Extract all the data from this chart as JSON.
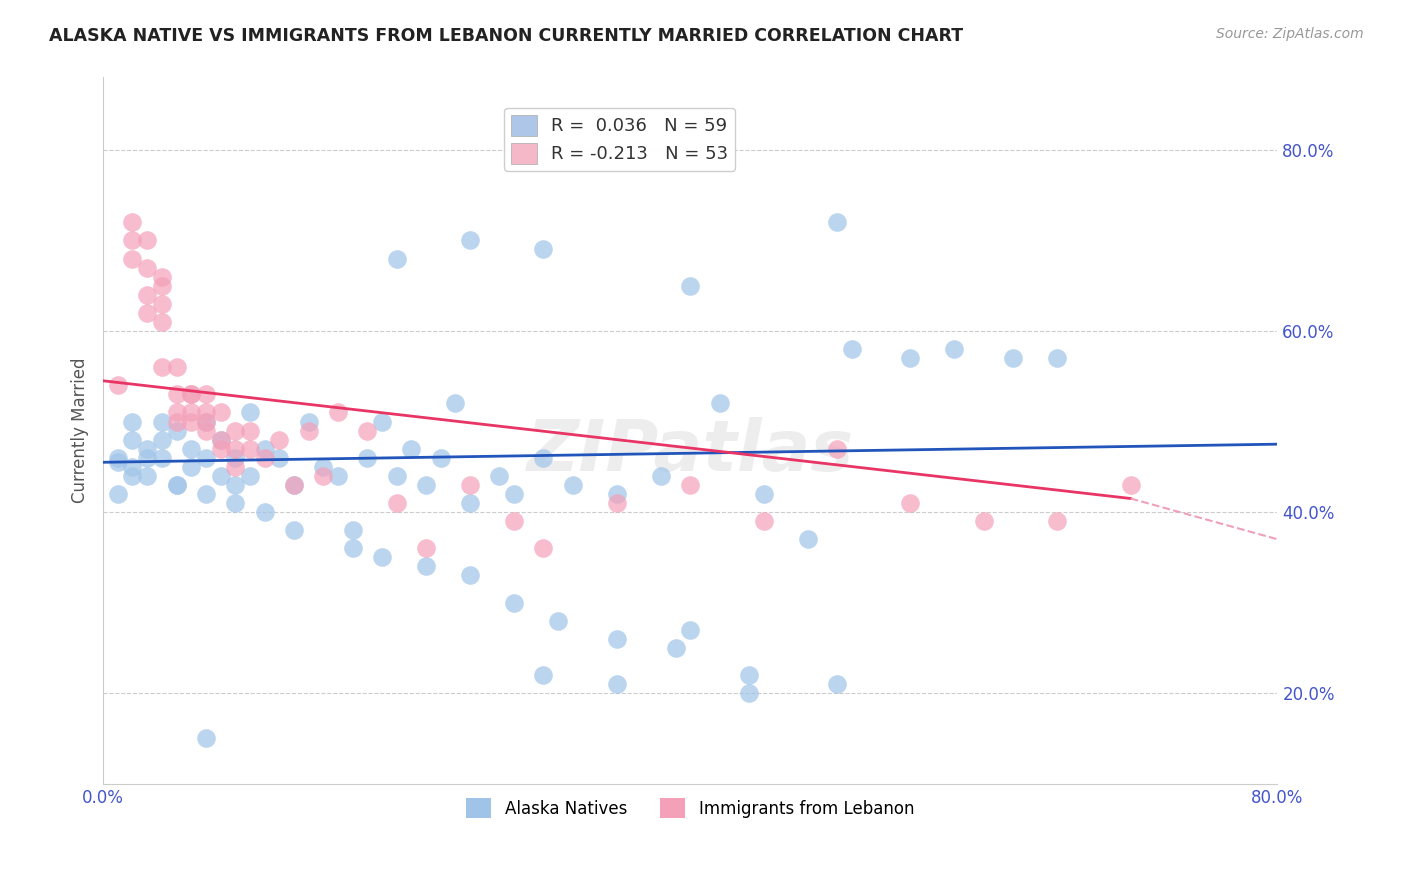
{
  "title": "ALASKA NATIVE VS IMMIGRANTS FROM LEBANON CURRENTLY MARRIED CORRELATION CHART",
  "source": "Source: ZipAtlas.com",
  "ylabel": "Currently Married",
  "xlim": [
    0.0,
    0.8
  ],
  "ylim": [
    0.1,
    0.88
  ],
  "x_ticks": [
    0.0,
    0.1,
    0.2,
    0.3,
    0.4,
    0.5,
    0.6,
    0.7,
    0.8
  ],
  "y_ticks": [
    0.2,
    0.4,
    0.6,
    0.8
  ],
  "blue_dot_color": "#a0c4e8",
  "pink_dot_color": "#f4a0b8",
  "blue_line_color": "#2255bb",
  "pink_line_color": "#e83565",
  "pink_line_dashed_color": "#f0a0b8",
  "watermark": "ZIPatlas",
  "legend_box_color": "#aec6e8",
  "legend_box_pink": "#f4b8c8",
  "blue_scatter_x": [
    0.01,
    0.01,
    0.01,
    0.02,
    0.02,
    0.02,
    0.02,
    0.03,
    0.03,
    0.03,
    0.04,
    0.04,
    0.04,
    0.05,
    0.05,
    0.06,
    0.06,
    0.07,
    0.07,
    0.08,
    0.08,
    0.09,
    0.09,
    0.1,
    0.1,
    0.11,
    0.12,
    0.13,
    0.14,
    0.15,
    0.16,
    0.17,
    0.18,
    0.19,
    0.2,
    0.21,
    0.22,
    0.23,
    0.24,
    0.25,
    0.27,
    0.28,
    0.3,
    0.32,
    0.35,
    0.38,
    0.42,
    0.45,
    0.48,
    0.51,
    0.55,
    0.58,
    0.62,
    0.65,
    0.2,
    0.25,
    0.3,
    0.4,
    0.5
  ],
  "blue_scatter_y": [
    0.455,
    0.46,
    0.42,
    0.5,
    0.44,
    0.48,
    0.45,
    0.47,
    0.46,
    0.44,
    0.5,
    0.48,
    0.46,
    0.49,
    0.43,
    0.47,
    0.45,
    0.5,
    0.46,
    0.48,
    0.44,
    0.46,
    0.43,
    0.51,
    0.44,
    0.47,
    0.46,
    0.43,
    0.5,
    0.45,
    0.44,
    0.38,
    0.46,
    0.5,
    0.44,
    0.47,
    0.43,
    0.46,
    0.52,
    0.41,
    0.44,
    0.42,
    0.46,
    0.43,
    0.42,
    0.44,
    0.52,
    0.42,
    0.37,
    0.58,
    0.57,
    0.58,
    0.57,
    0.57,
    0.68,
    0.7,
    0.69,
    0.65,
    0.72
  ],
  "blue_scatter_y2": [
    0.43,
    0.42,
    0.41,
    0.4,
    0.38,
    0.36,
    0.35,
    0.34,
    0.33,
    0.3,
    0.28,
    0.26,
    0.25,
    0.22,
    0.21,
    0.22,
    0.21,
    0.2,
    0.27,
    0.15
  ],
  "blue_scatter_x2": [
    0.05,
    0.07,
    0.09,
    0.11,
    0.13,
    0.17,
    0.19,
    0.22,
    0.25,
    0.28,
    0.31,
    0.35,
    0.39,
    0.44,
    0.5,
    0.3,
    0.35,
    0.44,
    0.4,
    0.07
  ],
  "pink_scatter_x": [
    0.01,
    0.02,
    0.02,
    0.02,
    0.03,
    0.03,
    0.03,
    0.03,
    0.04,
    0.04,
    0.04,
    0.04,
    0.05,
    0.05,
    0.05,
    0.06,
    0.06,
    0.06,
    0.07,
    0.07,
    0.07,
    0.08,
    0.08,
    0.09,
    0.09,
    0.1,
    0.1,
    0.11,
    0.12,
    0.13,
    0.14,
    0.15,
    0.16,
    0.18,
    0.2,
    0.22,
    0.25,
    0.28,
    0.3,
    0.35,
    0.4,
    0.45,
    0.5,
    0.55,
    0.6,
    0.65,
    0.7,
    0.04,
    0.05,
    0.06,
    0.07,
    0.08,
    0.09
  ],
  "pink_scatter_y": [
    0.54,
    0.68,
    0.72,
    0.7,
    0.64,
    0.67,
    0.7,
    0.62,
    0.63,
    0.66,
    0.61,
    0.65,
    0.53,
    0.56,
    0.5,
    0.51,
    0.53,
    0.5,
    0.51,
    0.53,
    0.5,
    0.48,
    0.51,
    0.47,
    0.49,
    0.47,
    0.49,
    0.46,
    0.48,
    0.43,
    0.49,
    0.44,
    0.51,
    0.49,
    0.41,
    0.36,
    0.43,
    0.39,
    0.36,
    0.41,
    0.43,
    0.39,
    0.47,
    0.41,
    0.39,
    0.39,
    0.43,
    0.56,
    0.51,
    0.53,
    0.49,
    0.47,
    0.45
  ]
}
